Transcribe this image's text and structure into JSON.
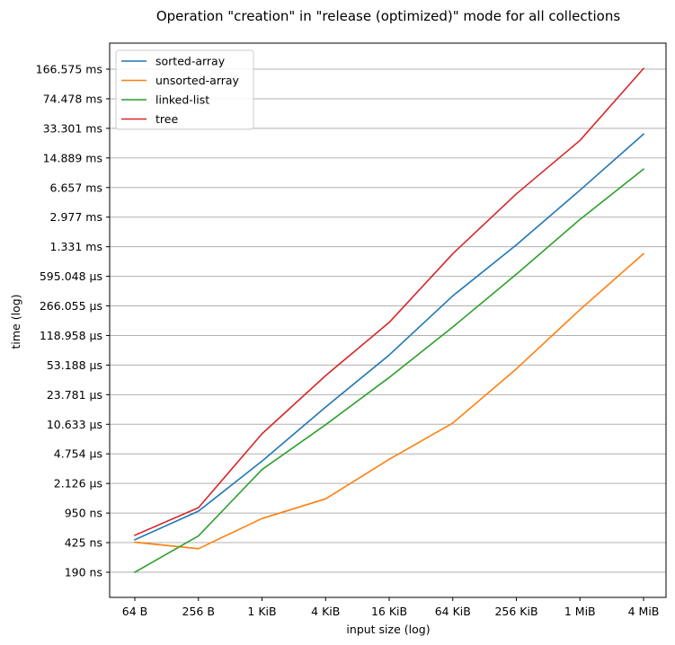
{
  "chart_data": {
    "type": "line",
    "title": "Operation \"creation\" in \"release (optimized)\" mode for all collections",
    "xlabel": "input size (log)",
    "ylabel": "time (log)",
    "yscale": "log",
    "grid": "horizontal",
    "legend_position": "top-left",
    "categories": [
      "64 B",
      "256 B",
      "1 KiB",
      "4 KiB",
      "16 KiB",
      "64 KiB",
      "256 KiB",
      "1 MiB",
      "4 MiB"
    ],
    "y_ticks": [
      {
        "label": "190 ns",
        "value_ns": 190
      },
      {
        "label": "425 ns",
        "value_ns": 425
      },
      {
        "label": "950 ns",
        "value_ns": 950
      },
      {
        "label": "2.126 µs",
        "value_ns": 2126
      },
      {
        "label": "4.754 µs",
        "value_ns": 4754
      },
      {
        "label": "10.633 µs",
        "value_ns": 10633
      },
      {
        "label": "23.781 µs",
        "value_ns": 23781
      },
      {
        "label": "53.188 µs",
        "value_ns": 53188
      },
      {
        "label": "118.958 µs",
        "value_ns": 118958
      },
      {
        "label": "266.055 µs",
        "value_ns": 266055
      },
      {
        "label": "595.048 µs",
        "value_ns": 595048
      },
      {
        "label": "1.331 ms",
        "value_ns": 1331000
      },
      {
        "label": "2.977 ms",
        "value_ns": 2977000
      },
      {
        "label": "6.657 ms",
        "value_ns": 6657000
      },
      {
        "label": "14.889 ms",
        "value_ns": 14889000
      },
      {
        "label": "33.301 ms",
        "value_ns": 33301000
      },
      {
        "label": "74.478 ms",
        "value_ns": 74478000
      },
      {
        "label": "166.575 ms",
        "value_ns": 166575000
      }
    ],
    "unit": "ns",
    "series": [
      {
        "name": "sorted-array",
        "color": "#1f77b4",
        "values": [
          460,
          1000,
          3900,
          17000,
          70000,
          350000,
          1400000,
          6200000,
          28500000
        ]
      },
      {
        "name": "unsorted-array",
        "color": "#ff7f0e",
        "values": [
          430,
          360,
          820,
          1400,
          4100,
          11000,
          48000,
          240000,
          1100000
        ]
      },
      {
        "name": "linked-list",
        "color": "#2ca02c",
        "values": [
          190,
          510,
          3100,
          10500,
          38000,
          150000,
          630000,
          2800000,
          11000000
        ]
      },
      {
        "name": "tree",
        "color": "#d62728",
        "values": [
          520,
          1100,
          8200,
          40000,
          170000,
          1100000,
          5600000,
          24000000,
          170000000
        ]
      }
    ]
  }
}
